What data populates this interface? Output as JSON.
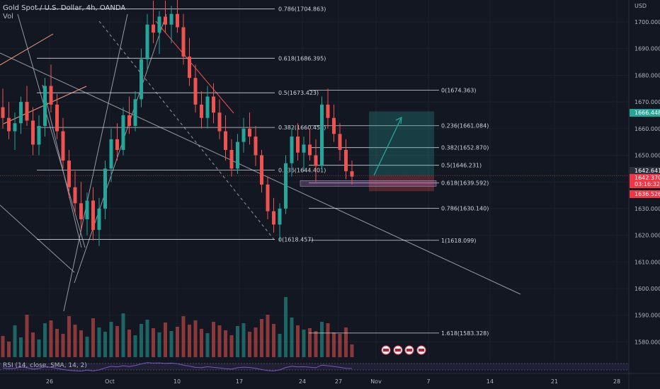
{
  "header": {
    "symbol": "Gold Spot / U.S. Dollar, 4h, OANDA",
    "volume_label": "Vol",
    "rsi_label": "RSI (14, close, SMA, 14, 2)",
    "currency": "USD"
  },
  "colors": {
    "bg": "#131722",
    "up": "#26a69a",
    "down": "#ef5350",
    "grid": "#1e222d",
    "fib": "#d1d4dc",
    "trend": "#9598a1",
    "long_profit": "#26a69a",
    "long_loss": "#ef5350",
    "target_arrow": "#26a69a"
  },
  "chart_data": {
    "type": "candlestick",
    "y_axis": {
      "ticks": [
        1700,
        1690,
        1680,
        1670,
        1660,
        1650,
        1640,
        1630,
        1620,
        1610,
        1600,
        1590,
        1580
      ],
      "labels": [
        "1700.000",
        "1690.000",
        "1680.000",
        "1670.000",
        "1660.000",
        "1650.000",
        "1640.000",
        "1630.000",
        "1620.000",
        "1610.000",
        "1600.000",
        "1590.000",
        "1580.000"
      ]
    },
    "x_axis": {
      "labels": [
        "26",
        "Oct",
        "10",
        "17",
        "24",
        "27",
        "Nov",
        "7",
        "14",
        "21",
        "28"
      ]
    },
    "price_tags": [
      {
        "value": "1666.448",
        "role": "target"
      },
      {
        "value": "1642.641",
        "role": "current-price"
      },
      {
        "value": "1642.370",
        "role": "entry"
      },
      {
        "value": "03:16:32",
        "role": "countdown"
      },
      {
        "value": "1636.526",
        "role": "stop"
      }
    ],
    "fib_left": [
      {
        "label": "0.786(1704.863)",
        "price": 1704.863
      },
      {
        "label": "0.618(1686.395)",
        "price": 1686.395
      },
      {
        "label": "0.5(1673.423)",
        "price": 1673.423
      },
      {
        "label": "0.382(1660.451)",
        "price": 1660.451
      },
      {
        "label": "0.236(1644.401)",
        "price": 1644.401
      },
      {
        "label": "0(1618.457)",
        "price": 1618.457
      }
    ],
    "fib_right": [
      {
        "label": "0(1674.363)",
        "price": 1674.363
      },
      {
        "label": "0.236(1661.084)",
        "price": 1661.084
      },
      {
        "label": "0.382(1652.870)",
        "price": 1652.87
      },
      {
        "label": "0.5(1646.231)",
        "price": 1646.231
      },
      {
        "label": "0.618(1639.592)",
        "price": 1639.592
      },
      {
        "label": "0.786(1630.140)",
        "price": 1630.14
      },
      {
        "label": "1(1618.099)",
        "price": 1618.099
      },
      {
        "label": "1.618(1583.328)",
        "price": 1583.328
      }
    ],
    "long_position": {
      "target": 1666.448,
      "entry": 1642.37,
      "stop": 1636.526
    },
    "candles": [
      {
        "o": 1668,
        "h": 1675,
        "l": 1660,
        "c": 1664
      },
      {
        "o": 1664,
        "h": 1670,
        "l": 1656,
        "c": 1659
      },
      {
        "o": 1659,
        "h": 1666,
        "l": 1652,
        "c": 1662
      },
      {
        "o": 1662,
        "h": 1672,
        "l": 1658,
        "c": 1670
      },
      {
        "o": 1670,
        "h": 1676,
        "l": 1661,
        "c": 1663
      },
      {
        "o": 1663,
        "h": 1668,
        "l": 1650,
        "c": 1654
      },
      {
        "o": 1654,
        "h": 1665,
        "l": 1650,
        "c": 1661
      },
      {
        "o": 1661,
        "h": 1679,
        "l": 1657,
        "c": 1676
      },
      {
        "o": 1676,
        "h": 1684,
        "l": 1666,
        "c": 1669
      },
      {
        "o": 1669,
        "h": 1673,
        "l": 1656,
        "c": 1659
      },
      {
        "o": 1659,
        "h": 1664,
        "l": 1645,
        "c": 1648
      },
      {
        "o": 1648,
        "h": 1652,
        "l": 1634,
        "c": 1638
      },
      {
        "o": 1638,
        "h": 1644,
        "l": 1628,
        "c": 1632
      },
      {
        "o": 1632,
        "h": 1640,
        "l": 1622,
        "c": 1626
      },
      {
        "o": 1626,
        "h": 1636,
        "l": 1620,
        "c": 1633
      },
      {
        "o": 1633,
        "h": 1638,
        "l": 1618,
        "c": 1622
      },
      {
        "o": 1622,
        "h": 1634,
        "l": 1616,
        "c": 1630
      },
      {
        "o": 1630,
        "h": 1648,
        "l": 1626,
        "c": 1645
      },
      {
        "o": 1645,
        "h": 1660,
        "l": 1640,
        "c": 1656
      },
      {
        "o": 1656,
        "h": 1662,
        "l": 1648,
        "c": 1652
      },
      {
        "o": 1652,
        "h": 1668,
        "l": 1650,
        "c": 1665
      },
      {
        "o": 1665,
        "h": 1672,
        "l": 1658,
        "c": 1661
      },
      {
        "o": 1661,
        "h": 1674,
        "l": 1659,
        "c": 1671
      },
      {
        "o": 1671,
        "h": 1690,
        "l": 1668,
        "c": 1686
      },
      {
        "o": 1686,
        "h": 1703,
        "l": 1682,
        "c": 1699
      },
      {
        "o": 1699,
        "h": 1708,
        "l": 1692,
        "c": 1696
      },
      {
        "o": 1696,
        "h": 1704,
        "l": 1688,
        "c": 1702
      },
      {
        "o": 1702,
        "h": 1708,
        "l": 1696,
        "c": 1699
      },
      {
        "o": 1699,
        "h": 1706,
        "l": 1692,
        "c": 1703
      },
      {
        "o": 1703,
        "h": 1709,
        "l": 1696,
        "c": 1698
      },
      {
        "o": 1698,
        "h": 1703,
        "l": 1684,
        "c": 1687
      },
      {
        "o": 1687,
        "h": 1694,
        "l": 1676,
        "c": 1679
      },
      {
        "o": 1679,
        "h": 1684,
        "l": 1666,
        "c": 1669
      },
      {
        "o": 1669,
        "h": 1674,
        "l": 1660,
        "c": 1664
      },
      {
        "o": 1664,
        "h": 1676,
        "l": 1660,
        "c": 1672
      },
      {
        "o": 1672,
        "h": 1677,
        "l": 1662,
        "c": 1666
      },
      {
        "o": 1666,
        "h": 1671,
        "l": 1656,
        "c": 1659
      },
      {
        "o": 1659,
        "h": 1665,
        "l": 1648,
        "c": 1652
      },
      {
        "o": 1652,
        "h": 1656,
        "l": 1642,
        "c": 1645
      },
      {
        "o": 1645,
        "h": 1658,
        "l": 1643,
        "c": 1655
      },
      {
        "o": 1655,
        "h": 1664,
        "l": 1651,
        "c": 1660
      },
      {
        "o": 1660,
        "h": 1666,
        "l": 1654,
        "c": 1657
      },
      {
        "o": 1657,
        "h": 1661,
        "l": 1646,
        "c": 1650
      },
      {
        "o": 1650,
        "h": 1652,
        "l": 1636,
        "c": 1639
      },
      {
        "o": 1639,
        "h": 1642,
        "l": 1626,
        "c": 1629
      },
      {
        "o": 1629,
        "h": 1634,
        "l": 1621,
        "c": 1624
      },
      {
        "o": 1624,
        "h": 1632,
        "l": 1618,
        "c": 1630
      },
      {
        "o": 1630,
        "h": 1650,
        "l": 1628,
        "c": 1647
      },
      {
        "o": 1647,
        "h": 1660,
        "l": 1642,
        "c": 1657
      },
      {
        "o": 1657,
        "h": 1662,
        "l": 1648,
        "c": 1651
      },
      {
        "o": 1651,
        "h": 1657,
        "l": 1644,
        "c": 1654
      },
      {
        "o": 1654,
        "h": 1660,
        "l": 1648,
        "c": 1650
      },
      {
        "o": 1650,
        "h": 1656,
        "l": 1640,
        "c": 1646
      },
      {
        "o": 1646,
        "h": 1672,
        "l": 1644,
        "c": 1669
      },
      {
        "o": 1669,
        "h": 1675,
        "l": 1660,
        "c": 1664
      },
      {
        "o": 1664,
        "h": 1669,
        "l": 1655,
        "c": 1658
      },
      {
        "o": 1658,
        "h": 1662,
        "l": 1648,
        "c": 1652
      },
      {
        "o": 1652,
        "h": 1656,
        "l": 1641,
        "c": 1644
      },
      {
        "o": 1644,
        "h": 1648,
        "l": 1639,
        "c": 1642
      }
    ],
    "rsi": [
      44,
      40,
      42,
      48,
      45,
      38,
      41,
      50,
      47,
      42,
      36,
      32,
      30,
      28,
      33,
      29,
      34,
      44,
      52,
      49,
      55,
      51,
      56,
      64,
      70,
      68,
      69,
      67,
      68,
      65,
      58,
      53,
      47,
      45,
      50,
      47,
      44,
      40,
      38,
      45,
      48,
      46,
      42,
      36,
      31,
      29,
      34,
      46,
      52,
      49,
      50,
      48,
      45,
      58,
      55,
      51,
      47,
      42,
      41
    ],
    "volumes": [
      30,
      22,
      45,
      28,
      60,
      35,
      25,
      48,
      52,
      40,
      33,
      58,
      46,
      38,
      29,
      55,
      42,
      36,
      50,
      44,
      62,
      39,
      31,
      47,
      53,
      41,
      35,
      49,
      37,
      43,
      58,
      46,
      52,
      40,
      34,
      50,
      45,
      38,
      31,
      44,
      48,
      36,
      42,
      54,
      60,
      47,
      33,
      85,
      56,
      45,
      39,
      41,
      37,
      50,
      48,
      35,
      33,
      42,
      18
    ]
  }
}
